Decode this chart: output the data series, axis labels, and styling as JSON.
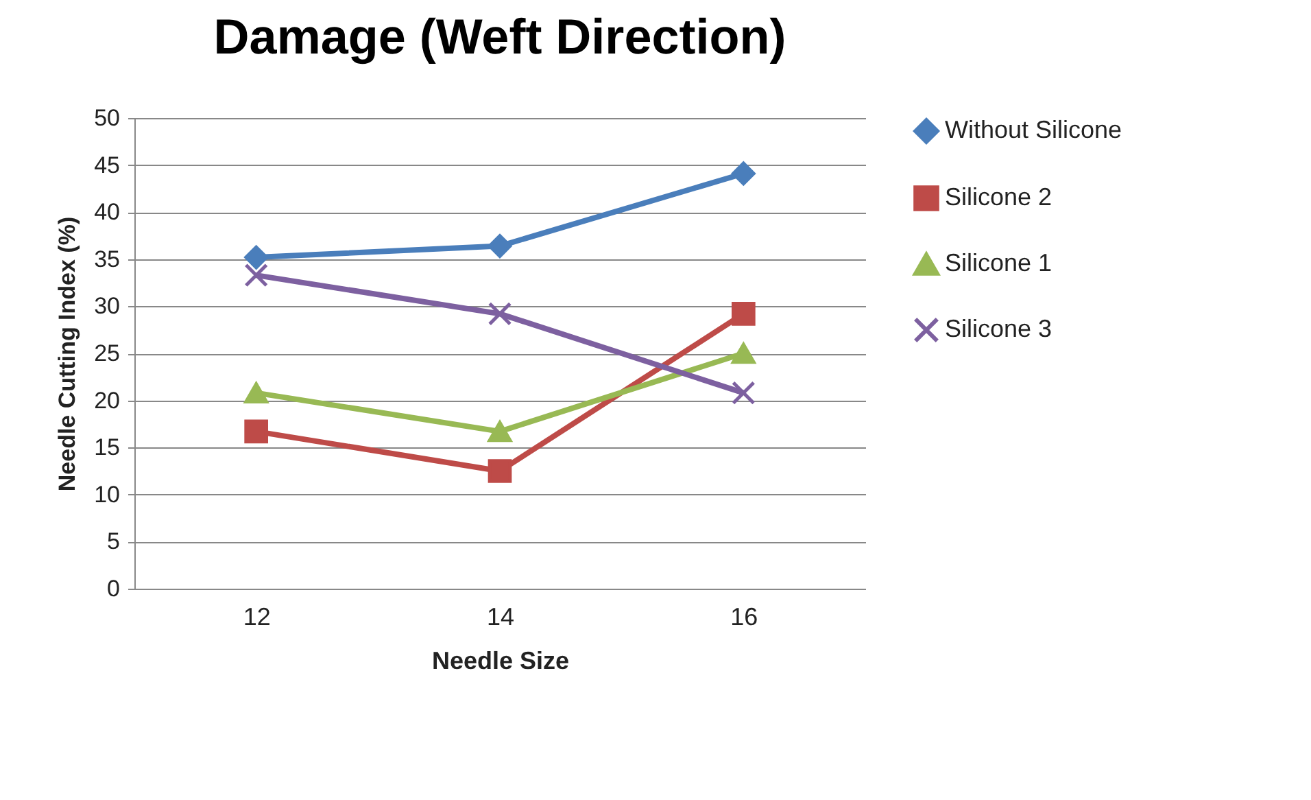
{
  "chart_data": {
    "type": "line",
    "title": "Damage (Weft Direction)",
    "xlabel": "Needle Size",
    "ylabel": "Needle Cutting Index (%)",
    "categories": [
      "12",
      "14",
      "16"
    ],
    "series": [
      {
        "name": "Without Silicone",
        "color": "#4a7ebb",
        "marker": "diamond",
        "values": [
          35.2,
          36.4,
          44.1
        ]
      },
      {
        "name": "Silicone 2",
        "color": "#be4b48",
        "marker": "square",
        "values": [
          16.7,
          12.5,
          29.2
        ]
      },
      {
        "name": "Silicone 1",
        "color": "#98b954",
        "marker": "triangle",
        "values": [
          20.8,
          16.7,
          25.0
        ]
      },
      {
        "name": "Silicone 3",
        "color": "#7d60a0",
        "marker": "cross",
        "values": [
          33.3,
          29.2,
          20.8
        ]
      }
    ],
    "ylim": [
      0,
      50
    ],
    "yticks": [
      0,
      5,
      10,
      15,
      20,
      25,
      30,
      35,
      40,
      45,
      50
    ],
    "grid": "y",
    "legend": "right",
    "line_style": "solid"
  }
}
